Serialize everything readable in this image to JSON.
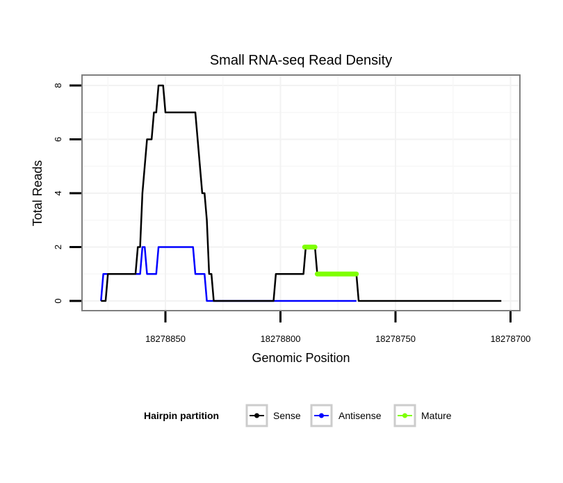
{
  "chart_data": {
    "type": "line",
    "title": "Small RNA-seq Read Density",
    "xlabel": "Genomic Position",
    "ylabel": "Total Reads",
    "xlim": [
      18278886,
      18278696
    ],
    "x_reversed": true,
    "ylim": [
      -0.35,
      8.4
    ],
    "x_ticks": [
      18278850,
      18278800,
      18278750,
      18278700
    ],
    "x_tick_labels": [
      "18278850",
      "18278800",
      "18278750",
      "18278700"
    ],
    "y_ticks": [
      0,
      2,
      4,
      6,
      8
    ],
    "y_tick_labels": [
      "0",
      "2",
      "4",
      "6",
      "8"
    ],
    "grid": true,
    "legend": {
      "title": "Hairpin partition",
      "placement": "bottom",
      "entries": [
        "Sense",
        "Antisense",
        "Mature"
      ]
    },
    "series": [
      {
        "name": "Sense",
        "color": "#000000",
        "points": [
          [
            18278878,
            0
          ],
          [
            18278876,
            0
          ],
          [
            18278875,
            1
          ],
          [
            18278863,
            1
          ],
          [
            18278862,
            2
          ],
          [
            18278861,
            2
          ],
          [
            18278860,
            4
          ],
          [
            18278858,
            6
          ],
          [
            18278856,
            6
          ],
          [
            18278855,
            7
          ],
          [
            18278854,
            7
          ],
          [
            18278853,
            8
          ],
          [
            18278851,
            8
          ],
          [
            18278850,
            7
          ],
          [
            18278837,
            7
          ],
          [
            18278834,
            4
          ],
          [
            18278833,
            4
          ],
          [
            18278832,
            3
          ],
          [
            18278831,
            1
          ],
          [
            18278830,
            1
          ],
          [
            18278829,
            0
          ],
          [
            18278803,
            0
          ],
          [
            18278802,
            1
          ],
          [
            18278790,
            1
          ],
          [
            18278789,
            2
          ],
          [
            18278785,
            2
          ],
          [
            18278784,
            1
          ],
          [
            18278767,
            1
          ],
          [
            18278766,
            0
          ],
          [
            18278704,
            0
          ]
        ]
      },
      {
        "name": "Antisense",
        "color": "#0000ff",
        "points": [
          [
            18278878,
            0
          ],
          [
            18278877,
            1
          ],
          [
            18278861,
            1
          ],
          [
            18278860,
            2
          ],
          [
            18278859,
            2
          ],
          [
            18278858,
            1
          ],
          [
            18278854,
            1
          ],
          [
            18278853,
            2
          ],
          [
            18278838,
            2
          ],
          [
            18278837,
            1
          ],
          [
            18278833,
            1
          ],
          [
            18278832,
            0
          ],
          [
            18278767,
            0
          ]
        ]
      },
      {
        "name": "Mature",
        "color": "#7fff00",
        "segments": [
          [
            [
              18278789.5,
              2
            ],
            [
              18278785,
              2
            ]
          ],
          [
            [
              18278784,
              1
            ],
            [
              18278767,
              1
            ]
          ]
        ]
      }
    ]
  }
}
